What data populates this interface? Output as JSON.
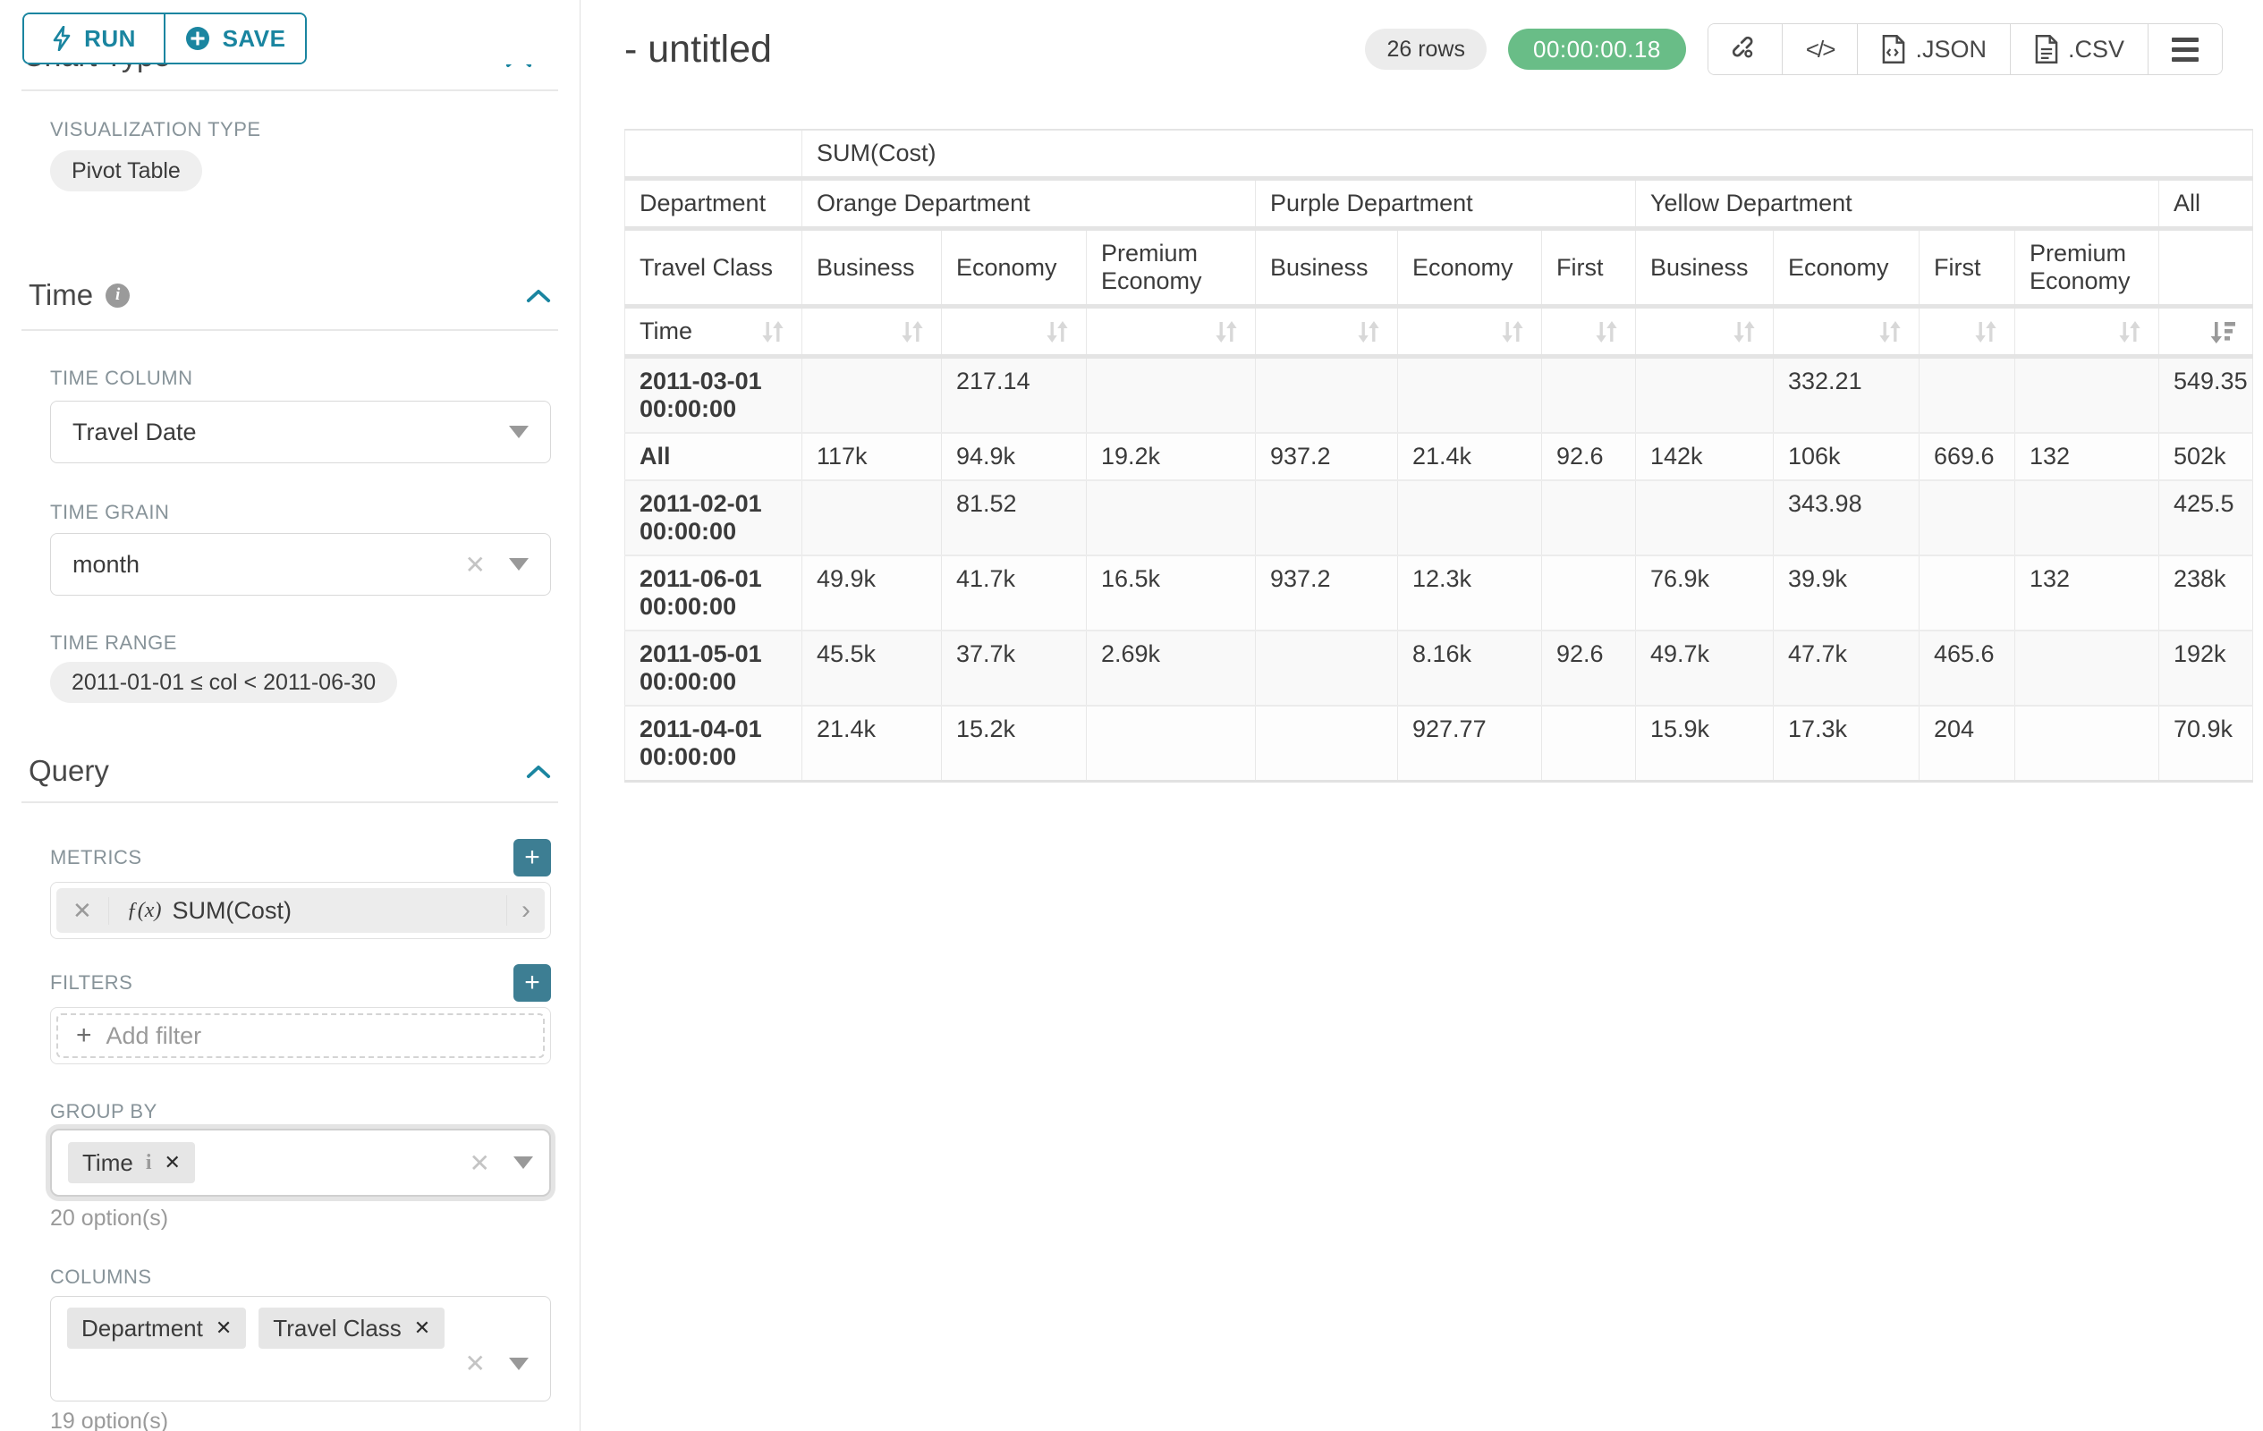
{
  "sidebar": {
    "run_label": "RUN",
    "save_label": "SAVE",
    "chart_type_header": "Chart Type",
    "viz_type_label": "VISUALIZATION TYPE",
    "viz_type_value": "Pivot Table",
    "time_section": {
      "title": "Time",
      "time_column_label": "TIME COLUMN",
      "time_column_value": "Travel Date",
      "time_grain_label": "TIME GRAIN",
      "time_grain_value": "month",
      "time_range_label": "TIME RANGE",
      "time_range_value": "2011-01-01 ≤ col < 2011-06-30"
    },
    "query_section": {
      "title": "Query",
      "metrics_label": "METRICS",
      "metric_fx": "ƒ(x)",
      "metric_value": "SUM(Cost)",
      "filters_label": "FILTERS",
      "add_filter_label": "Add filter",
      "group_by_label": "GROUP BY",
      "group_by_tag": "Time",
      "group_by_options_hint": "20 option(s)",
      "columns_label": "COLUMNS",
      "columns_tags": [
        "Department",
        "Travel Class"
      ],
      "columns_options_hint": "19 option(s)"
    }
  },
  "header": {
    "title": "- untitled",
    "row_count": "26 rows",
    "elapsed": "00:00:00.18",
    "export_json_label": ".JSON",
    "export_csv_label": ".CSV"
  },
  "colors": {
    "accent": "#1a85a0",
    "plus_button": "#3d7e93",
    "success_pill": "#69bd87"
  },
  "chart_data": {
    "type": "table",
    "title": "SUM(Cost)",
    "metric": "SUM(Cost)",
    "row_dimension": "Time",
    "column_dimensions": [
      "Department",
      "Travel Class"
    ],
    "corner_labels": {
      "department": "Department",
      "travel_class": "Travel Class",
      "time": "Time"
    },
    "column_groups": [
      {
        "department": "Orange Department",
        "classes": [
          "Business",
          "Economy",
          "Premium Economy"
        ]
      },
      {
        "department": "Purple Department",
        "classes": [
          "Business",
          "Economy",
          "First"
        ]
      },
      {
        "department": "Yellow Department",
        "classes": [
          "Business",
          "Economy",
          "First",
          "Premium Economy"
        ]
      },
      {
        "department": "All",
        "classes": [
          ""
        ]
      }
    ],
    "sorted_column": "All",
    "sort_direction": "desc",
    "rows": [
      {
        "label": "2011-03-01 00:00:00",
        "values": [
          "",
          "217.14",
          "",
          "",
          "",
          "",
          "",
          "332.21",
          "",
          "",
          "549.35"
        ]
      },
      {
        "label": "All",
        "total": true,
        "values": [
          "117k",
          "94.9k",
          "19.2k",
          "937.2",
          "21.4k",
          "92.6",
          "142k",
          "106k",
          "669.6",
          "132",
          "502k"
        ]
      },
      {
        "label": "2011-02-01 00:00:00",
        "values": [
          "",
          "81.52",
          "",
          "",
          "",
          "",
          "",
          "343.98",
          "",
          "",
          "425.5"
        ]
      },
      {
        "label": "2011-06-01 00:00:00",
        "values": [
          "49.9k",
          "41.7k",
          "16.5k",
          "937.2",
          "12.3k",
          "",
          "76.9k",
          "39.9k",
          "",
          "132",
          "238k"
        ]
      },
      {
        "label": "2011-05-01 00:00:00",
        "values": [
          "45.5k",
          "37.7k",
          "2.69k",
          "",
          "8.16k",
          "92.6",
          "49.7k",
          "47.7k",
          "465.6",
          "",
          "192k"
        ]
      },
      {
        "label": "2011-04-01 00:00:00",
        "values": [
          "21.4k",
          "15.2k",
          "",
          "",
          "927.77",
          "",
          "15.9k",
          "17.3k",
          "204",
          "",
          "70.9k"
        ]
      }
    ]
  }
}
